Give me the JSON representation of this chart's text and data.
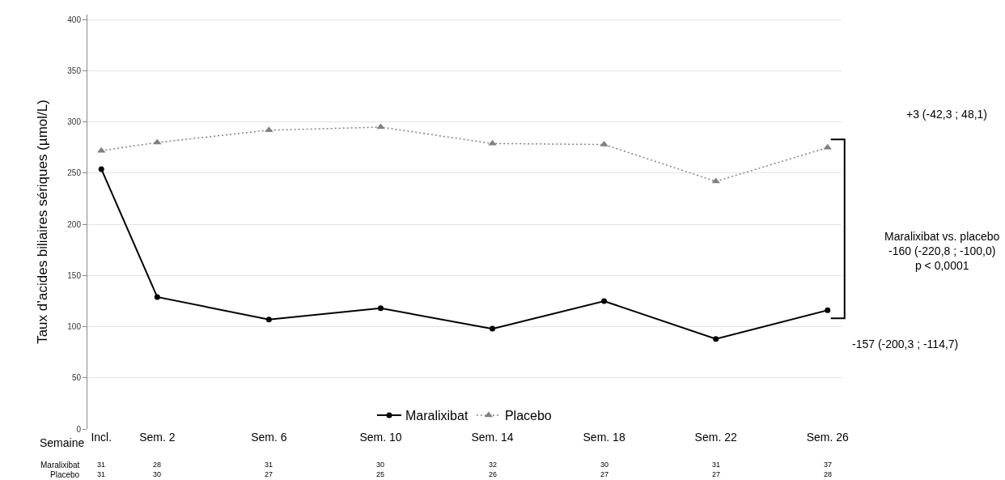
{
  "chart_data": {
    "type": "line",
    "xlabel": "Semaine",
    "ylabel": "Taux d’acides biliaires sériques (µmol/L)",
    "x": [
      0,
      2,
      6,
      10,
      14,
      18,
      22,
      26
    ],
    "xlim": [
      -0.5,
      26.5
    ],
    "xticks": [
      {
        "value": 0,
        "label": "Incl."
      },
      {
        "value": 2,
        "label": "Sem. 2"
      },
      {
        "value": 6,
        "label": "Sem. 6"
      },
      {
        "value": 10,
        "label": "Sem. 10"
      },
      {
        "value": 14,
        "label": "Sem. 14"
      },
      {
        "value": 18,
        "label": "Sem. 18"
      },
      {
        "value": 22,
        "label": "Sem. 22"
      },
      {
        "value": 26,
        "label": "Sem. 26"
      }
    ],
    "ylim": [
      0,
      405
    ],
    "yticks": [
      0,
      50,
      100,
      150,
      200,
      250,
      300,
      350,
      400
    ],
    "series": [
      {
        "name": "Maralixibat",
        "color": "#000000",
        "marker": "circle",
        "line_style": "solid",
        "values": [
          254,
          129,
          107,
          118,
          98,
          125,
          88,
          116
        ]
      },
      {
        "name": "Placebo",
        "color": "#808080",
        "marker": "triangle",
        "line_style": "dotted",
        "values": [
          272,
          280,
          292,
          295,
          279,
          278,
          242,
          275
        ]
      }
    ],
    "grid": "y",
    "legend": "bottom",
    "annotations": [
      "+3 (-42,3 ; 48,1)",
      "Maralixibat vs. placebo\n-160 (-220,8 ; -100,0)\np < 0,0001",
      "-157 (-200,3 ; -114,7)",
      "Maralixibat",
      "31",
      "28",
      "31",
      "30",
      "32",
      "30",
      "31",
      "37",
      "Placebo",
      "31",
      "30",
      "27",
      "25",
      "26",
      "27",
      "27",
      "28"
    ]
  }
}
